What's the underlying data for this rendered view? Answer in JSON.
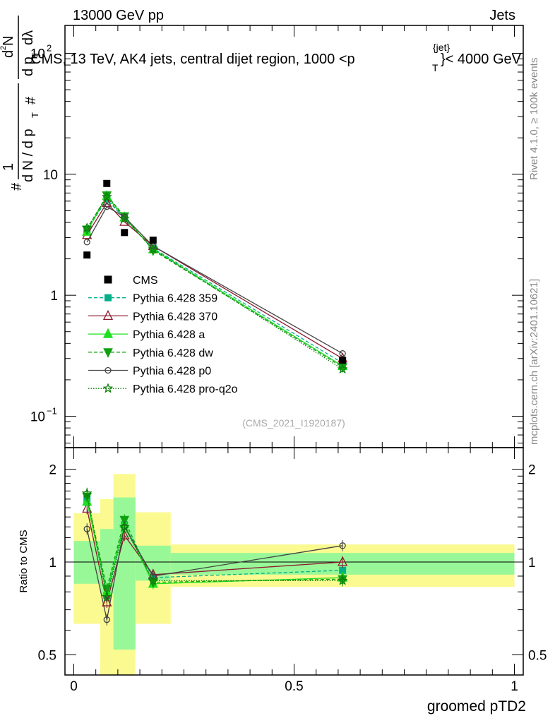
{
  "header": {
    "left": "13000 GeV pp",
    "right": "Jets",
    "plot_title": "CMS, 13 TeV, AK4 jets, central dijet region, 1000 <p",
    "plot_title_sup": "{jet}",
    "plot_title_sub": "T",
    "plot_title_end": "}< 4000 GeV"
  },
  "side_labels": {
    "rivet": "Rivet 4.1.0, ≥ 100k events",
    "mcplots": "mcplots.cern.ch [arXiv:2401.10621]"
  },
  "watermark": "(CMS_2021_I1920187)",
  "ylabel_main": {
    "hash1": "#",
    "one": "1",
    "frac_den": "d N / d p",
    "sub_T": "T",
    "hash2": "#",
    "d2N": "d",
    "sup2": "2",
    "N": "N",
    "dp": "d p",
    "sub_T2": "T",
    "dlambda": "dλ"
  },
  "ylabel_ratio": "Ratio to CMS",
  "xlabel": "groomed pTD2",
  "colors": {
    "cms": "#000000",
    "p359": "#00b08a",
    "p370": "#8b1a2e",
    "pa": "#1ee01e",
    "pdw": "#11a011",
    "pp0": "#444444",
    "pq2o": "#0b800b",
    "band_inner": "#98f898",
    "band_outer": "#fafa90"
  },
  "chart_data": {
    "type": "scatter",
    "x": [
      0.03,
      0.075,
      0.115,
      0.18,
      0.61
    ],
    "x_edges": [
      0.0,
      0.06,
      0.09,
      0.14,
      0.22,
      1.0
    ],
    "xlim": [
      -0.02,
      1.02
    ],
    "ylim_main": [
      0.055,
      170
    ],
    "ylim_ratio": [
      0.43,
      2.35
    ],
    "x_ticks": [
      "0",
      "0.5",
      "1"
    ],
    "y_ticks_main": [
      "10^-1",
      "1",
      "10",
      "10^2"
    ],
    "y_ticks_ratio": [
      "0.5",
      "1",
      "2"
    ],
    "legend": [
      "CMS",
      "Pythia 6.428 359",
      "Pythia 6.428 370",
      "Pythia 6.428 a",
      "Pythia 6.428 dw",
      "Pythia 6.428 p0",
      "Pythia 6.428 pro-q2o"
    ],
    "data": {
      "name": "CMS",
      "values": [
        2.15,
        8.4,
        3.3,
        2.85,
        0.29
      ]
    },
    "bands": {
      "inner": [
        [
          0.85,
          1.17
        ],
        [
          0.79,
          1.28
        ],
        [
          0.52,
          1.62
        ],
        [
          0.87,
          1.13
        ],
        [
          0.91,
          1.07
        ]
      ],
      "outer": [
        [
          0.63,
          1.44
        ],
        [
          0.38,
          1.6
        ],
        [
          0.38,
          1.93
        ],
        [
          0.63,
          1.45
        ],
        [
          0.83,
          1.14
        ]
      ]
    },
    "series": [
      {
        "name": "Pythia 6.428 359",
        "values": [
          3.45,
          6.2,
          4.3,
          2.45,
          0.275
        ],
        "ratio": [
          1.6,
          0.78,
          1.32,
          0.89,
          0.94
        ],
        "color": "#00b08a",
        "marker": "square",
        "dash": "5,3"
      },
      {
        "name": "Pythia 6.428 370",
        "values": [
          3.15,
          5.8,
          4.05,
          2.55,
          0.3
        ],
        "ratio": [
          1.49,
          0.74,
          1.22,
          0.91,
          1.0
        ],
        "color": "#8b1a2e",
        "marker": "triangle-open",
        "dash": ""
      },
      {
        "name": "Pythia 6.428 a",
        "values": [
          3.35,
          6.6,
          4.4,
          2.4,
          0.26
        ],
        "ratio": [
          1.57,
          0.8,
          1.33,
          0.85,
          0.89
        ],
        "color": "#1ee01e",
        "marker": "triangle",
        "dash": ""
      },
      {
        "name": "Pythia 6.428 dw",
        "values": [
          3.5,
          6.7,
          4.5,
          2.35,
          0.255
        ],
        "ratio": [
          1.63,
          0.82,
          1.37,
          0.86,
          0.88
        ],
        "color": "#11a011",
        "marker": "triangle-down",
        "dash": "5,3"
      },
      {
        "name": "Pythia 6.428 p0",
        "values": [
          2.75,
          5.4,
          4.45,
          2.55,
          0.33
        ],
        "ratio": [
          1.28,
          0.65,
          1.3,
          0.9,
          1.13
        ],
        "color": "#444444",
        "marker": "circle-open",
        "dash": ""
      },
      {
        "name": "Pythia 6.428 pro-q2o",
        "values": [
          3.6,
          6.5,
          4.3,
          2.4,
          0.245
        ],
        "ratio": [
          1.67,
          0.77,
          1.3,
          0.87,
          0.87
        ],
        "color": "#0b800b",
        "marker": "star",
        "dash": "1.5,2"
      }
    ]
  }
}
